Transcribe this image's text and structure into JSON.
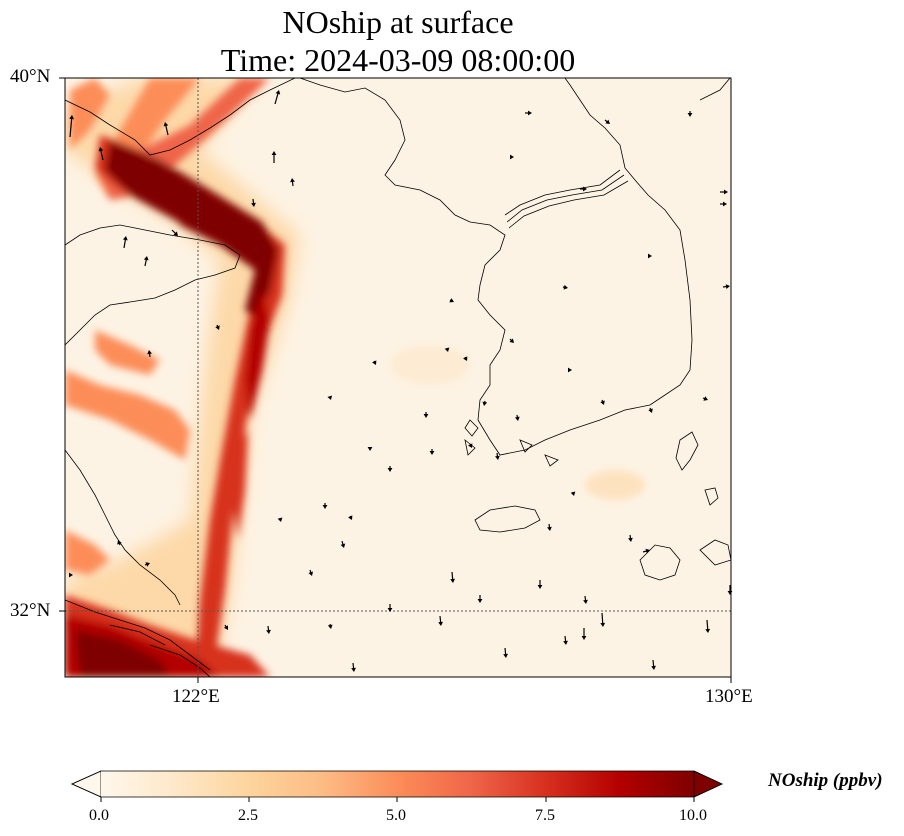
{
  "title": {
    "line1": "NOship at surface",
    "line2": "Time: 2024-03-09 08:00:00"
  },
  "axes": {
    "lat_labels": [
      "40°N",
      "32°N"
    ],
    "lon_labels": [
      "122°E",
      "130°E"
    ],
    "lat_range": [
      31,
      40
    ],
    "lon_range": [
      120,
      130
    ],
    "gridlines": "dotted, at 122°E and 32°N"
  },
  "colorbar": {
    "label": "NOship (ppbv)",
    "ticks": [
      "0.0",
      "2.5",
      "5.0",
      "7.5",
      "10.0"
    ],
    "min": 0,
    "max": 10,
    "colormap": "OrRd",
    "extend": "both",
    "colors": [
      "#fff7ec",
      "#fee8c8",
      "#fdd49e",
      "#fdbb84",
      "#fc8d59",
      "#ef6548",
      "#d7301f",
      "#b30000",
      "#7f0000"
    ]
  },
  "map_features": [
    "coastlines",
    "country borders",
    "wind vectors",
    "ship-lane NO concentration field"
  ]
}
